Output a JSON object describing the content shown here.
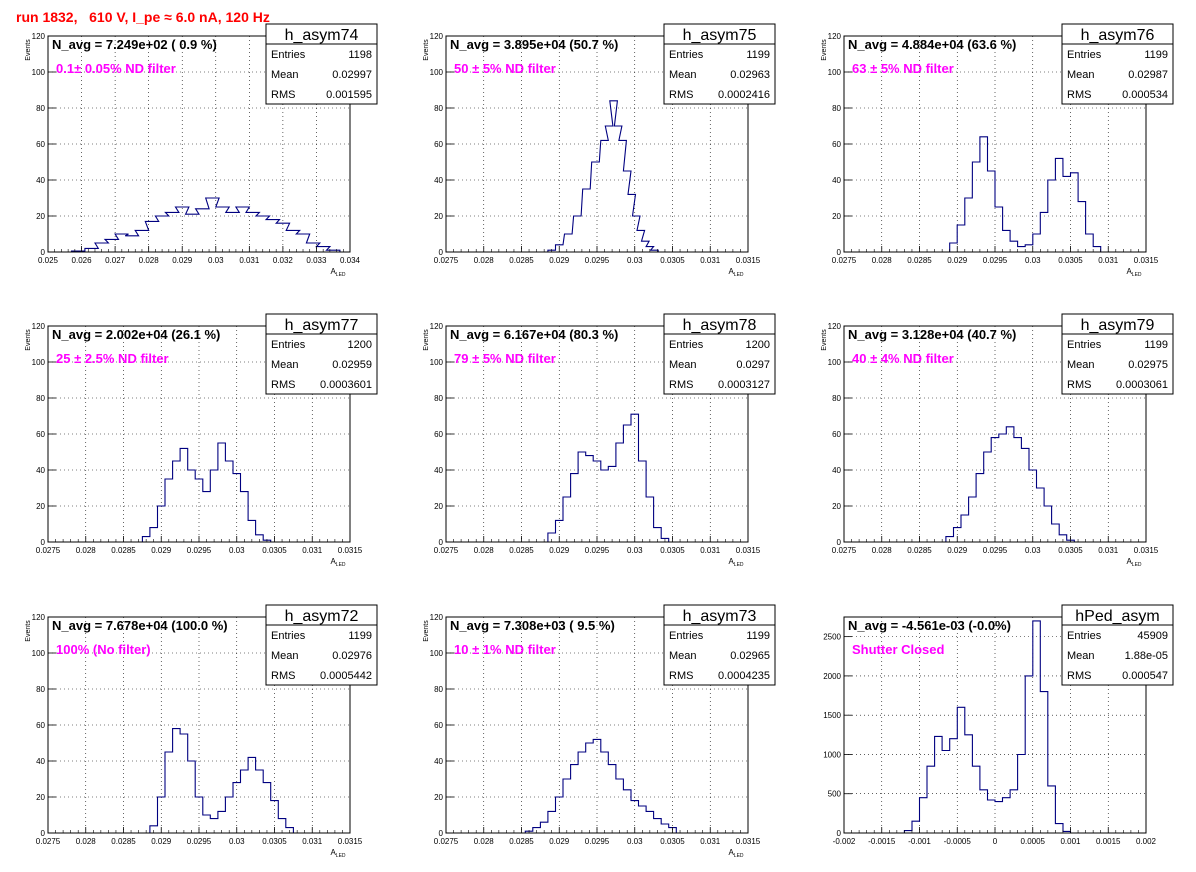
{
  "page": {
    "run_title": "run 1832,   610 V, I_pe ≈ 6.0 nA, 120 Hz"
  },
  "chart_data": [
    {
      "type": "bar",
      "name": "h_asym74",
      "nLabel": "N_avg = 7.249e+02 ( 0.9 %)",
      "filter": "0.1± 0.05% ND filter",
      "stats": {
        "entries": "1198",
        "mean": "0.02997",
        "rms": "0.001595"
      },
      "xlim": [
        0.025,
        0.034
      ],
      "xticks": [
        0.025,
        0.026,
        0.027,
        0.028,
        0.029,
        0.03,
        0.031,
        0.032,
        0.033,
        0.034
      ],
      "xticklabels": [
        "0.025",
        "0.026",
        "0.027",
        "0.028",
        "0.029",
        "0.03",
        "0.031",
        "0.032",
        "0.033",
        "0.034"
      ],
      "ylim": [
        0,
        120
      ],
      "yticks": [
        0,
        20,
        40,
        60,
        80,
        100,
        120
      ],
      "xlabel": "A_LED",
      "ylabel": "Events",
      "bins": [
        [
          0.0259,
          0.5
        ],
        [
          0.0263,
          2
        ],
        [
          0.0266,
          5
        ],
        [
          0.0269,
          7
        ],
        [
          0.0272,
          10
        ],
        [
          0.0275,
          9
        ],
        [
          0.0278,
          12
        ],
        [
          0.0281,
          17
        ],
        [
          0.0284,
          20
        ],
        [
          0.0287,
          22
        ],
        [
          0.029,
          25
        ],
        [
          0.0293,
          21
        ],
        [
          0.0296,
          24
        ],
        [
          0.0299,
          30
        ],
        [
          0.0302,
          25
        ],
        [
          0.0305,
          22
        ],
        [
          0.0308,
          25
        ],
        [
          0.0311,
          22
        ],
        [
          0.0314,
          20
        ],
        [
          0.0317,
          18
        ],
        [
          0.032,
          16
        ],
        [
          0.0323,
          12
        ],
        [
          0.0326,
          10
        ],
        [
          0.0329,
          5
        ],
        [
          0.0332,
          3
        ],
        [
          0.0335,
          1
        ]
      ]
    },
    {
      "type": "bar",
      "name": "h_asym75",
      "nLabel": "N_avg = 3.895e+04 (50.7 %)",
      "filter": "50 ± 5% ND filter",
      "stats": {
        "entries": "1199",
        "mean": "0.02963",
        "rms": "0.0002416"
      },
      "xlim": [
        0.0275,
        0.0315
      ],
      "xticks": [
        0.0275,
        0.028,
        0.0285,
        0.029,
        0.0295,
        0.03,
        0.0305,
        0.031,
        0.0315
      ],
      "xticklabels": [
        "0.0275",
        "0.028",
        "0.0285",
        "0.029",
        "0.0295",
        "0.03",
        "0.0305",
        "0.031",
        "0.0315"
      ],
      "ylim": [
        0,
        120
      ],
      "yticks": [
        0,
        20,
        40,
        60,
        80,
        100,
        120
      ],
      "xlabel": "A_LED",
      "ylabel": "Events",
      "bins": [
        [
          0.0289,
          1
        ],
        [
          0.029,
          4
        ],
        [
          0.02912,
          10
        ],
        [
          0.02924,
          20
        ],
        [
          0.02936,
          35
        ],
        [
          0.02948,
          50
        ],
        [
          0.0296,
          62
        ],
        [
          0.02966,
          70
        ],
        [
          0.02972,
          84
        ],
        [
          0.02978,
          70
        ],
        [
          0.02984,
          62
        ],
        [
          0.0299,
          45
        ],
        [
          0.02996,
          32
        ],
        [
          0.03002,
          20
        ],
        [
          0.03008,
          12
        ],
        [
          0.03014,
          6
        ],
        [
          0.0302,
          3
        ],
        [
          0.03026,
          1
        ]
      ]
    },
    {
      "type": "bar",
      "name": "h_asym76",
      "nLabel": "N_avg = 4.884e+04 (63.6 %)",
      "filter": "63 ± 5% ND filter",
      "stats": {
        "entries": "1199",
        "mean": "0.02987",
        "rms": "0.000534"
      },
      "xlim": [
        0.0275,
        0.0315
      ],
      "xticks": [
        0.0275,
        0.028,
        0.0285,
        0.029,
        0.0295,
        0.03,
        0.0305,
        0.031,
        0.0315
      ],
      "xticklabels": [
        "0.0275",
        "0.028",
        "0.0285",
        "0.029",
        "0.0295",
        "0.03",
        "0.0305",
        "0.031",
        "0.0315"
      ],
      "ylim": [
        0,
        120
      ],
      "yticks": [
        0,
        20,
        40,
        60,
        80,
        100,
        120
      ],
      "xlabel": "A_LED",
      "ylabel": "Events",
      "bins": [
        [
          0.02895,
          5
        ],
        [
          0.02905,
          15
        ],
        [
          0.02915,
          30
        ],
        [
          0.02925,
          50
        ],
        [
          0.02935,
          64
        ],
        [
          0.02945,
          45
        ],
        [
          0.02955,
          25
        ],
        [
          0.02965,
          12
        ],
        [
          0.02975,
          6
        ],
        [
          0.02985,
          3
        ],
        [
          0.02995,
          4
        ],
        [
          0.03005,
          10
        ],
        [
          0.03015,
          22
        ],
        [
          0.03025,
          40
        ],
        [
          0.03035,
          52
        ],
        [
          0.03045,
          42
        ],
        [
          0.03055,
          44
        ],
        [
          0.03065,
          28
        ],
        [
          0.03075,
          10
        ],
        [
          0.03085,
          3
        ]
      ]
    },
    {
      "type": "bar",
      "name": "h_asym77",
      "nLabel": "N_avg = 2.002e+04 (26.1 %)",
      "filter": "25 ± 2.5% ND filter",
      "stats": {
        "entries": "1200",
        "mean": "0.02959",
        "rms": "0.0003601"
      },
      "xlim": [
        0.0275,
        0.0315
      ],
      "xticks": [
        0.0275,
        0.028,
        0.0285,
        0.029,
        0.0295,
        0.03,
        0.0305,
        0.031,
        0.0315
      ],
      "xticklabels": [
        "0.0275",
        "0.028",
        "0.0285",
        "0.029",
        "0.0295",
        "0.03",
        "0.0305",
        "0.031",
        "0.0315"
      ],
      "ylim": [
        0,
        120
      ],
      "yticks": [
        0,
        20,
        40,
        60,
        80,
        100,
        120
      ],
      "xlabel": "A_LED",
      "ylabel": "Events",
      "bins": [
        [
          0.0288,
          3
        ],
        [
          0.0289,
          8
        ],
        [
          0.029,
          20
        ],
        [
          0.0291,
          35
        ],
        [
          0.0292,
          45
        ],
        [
          0.0293,
          52
        ],
        [
          0.0294,
          40
        ],
        [
          0.0295,
          35
        ],
        [
          0.0296,
          28
        ],
        [
          0.0297,
          40
        ],
        [
          0.0298,
          55
        ],
        [
          0.0299,
          45
        ],
        [
          0.03,
          38
        ],
        [
          0.0301,
          28
        ],
        [
          0.0302,
          12
        ],
        [
          0.0303,
          4
        ],
        [
          0.0304,
          1
        ]
      ]
    },
    {
      "type": "bar",
      "name": "h_asym78",
      "nLabel": "N_avg = 6.167e+04 (80.3 %)",
      "filter": "79 ± 5% ND filter",
      "stats": {
        "entries": "1200",
        "mean": "0.0297",
        "rms": "0.0003127"
      },
      "xlim": [
        0.0275,
        0.0315
      ],
      "xticks": [
        0.0275,
        0.028,
        0.0285,
        0.029,
        0.0295,
        0.03,
        0.0305,
        0.031,
        0.0315
      ],
      "xticklabels": [
        "0.0275",
        "0.028",
        "0.0285",
        "0.029",
        "0.0295",
        "0.03",
        "0.0305",
        "0.031",
        "0.0315"
      ],
      "ylim": [
        0,
        120
      ],
      "yticks": [
        0,
        20,
        40,
        60,
        80,
        100,
        120
      ],
      "xlabel": "A_LED",
      "ylabel": "Events",
      "bins": [
        [
          0.0289,
          5
        ],
        [
          0.029,
          12
        ],
        [
          0.0291,
          25
        ],
        [
          0.0292,
          38
        ],
        [
          0.0293,
          50
        ],
        [
          0.0294,
          48
        ],
        [
          0.0295,
          45
        ],
        [
          0.0296,
          40
        ],
        [
          0.0297,
          42
        ],
        [
          0.0298,
          55
        ],
        [
          0.0299,
          65
        ],
        [
          0.03,
          71
        ],
        [
          0.0301,
          45
        ],
        [
          0.0302,
          25
        ],
        [
          0.0303,
          8
        ],
        [
          0.0304,
          2
        ]
      ]
    },
    {
      "type": "bar",
      "name": "h_asym79",
      "nLabel": "N_avg = 3.128e+04 (40.7 %)",
      "filter": "40 ± 4% ND filter",
      "stats": {
        "entries": "1199",
        "mean": "0.02975",
        "rms": "0.0003061"
      },
      "xlim": [
        0.0275,
        0.0315
      ],
      "xticks": [
        0.0275,
        0.028,
        0.0285,
        0.029,
        0.0295,
        0.03,
        0.0305,
        0.031,
        0.0315
      ],
      "xticklabels": [
        "0.0275",
        "0.028",
        "0.0285",
        "0.029",
        "0.0295",
        "0.03",
        "0.0305",
        "0.031",
        "0.0315"
      ],
      "ylim": [
        0,
        120
      ],
      "yticks": [
        0,
        20,
        40,
        60,
        80,
        100,
        120
      ],
      "xlabel": "A_LED",
      "ylabel": "Events",
      "bins": [
        [
          0.0289,
          3
        ],
        [
          0.029,
          8
        ],
        [
          0.0291,
          15
        ],
        [
          0.0292,
          25
        ],
        [
          0.0293,
          38
        ],
        [
          0.0294,
          50
        ],
        [
          0.0295,
          58
        ],
        [
          0.0296,
          60
        ],
        [
          0.0297,
          64
        ],
        [
          0.0298,
          58
        ],
        [
          0.0299,
          52
        ],
        [
          0.03,
          40
        ],
        [
          0.0301,
          30
        ],
        [
          0.0302,
          20
        ],
        [
          0.0303,
          10
        ],
        [
          0.0304,
          4
        ],
        [
          0.0305,
          1
        ]
      ]
    },
    {
      "type": "bar",
      "name": "h_asym72",
      "nLabel": "N_avg = 7.678e+04 (100.0 %)",
      "filter": "100% (No filter)",
      "stats": {
        "entries": "1199",
        "mean": "0.02976",
        "rms": "0.0005442"
      },
      "xlim": [
        0.0275,
        0.0315
      ],
      "xticks": [
        0.0275,
        0.028,
        0.0285,
        0.029,
        0.0295,
        0.03,
        0.0305,
        0.031,
        0.0315
      ],
      "xticklabels": [
        "0.0275",
        "0.028",
        "0.0285",
        "0.029",
        "0.0295",
        "0.03",
        "0.0305",
        "0.031",
        "0.0315"
      ],
      "ylim": [
        0,
        120
      ],
      "yticks": [
        0,
        20,
        40,
        60,
        80,
        100,
        120
      ],
      "xlabel": "A_LED",
      "ylabel": "Events",
      "bins": [
        [
          0.0289,
          4
        ],
        [
          0.029,
          20
        ],
        [
          0.0291,
          45
        ],
        [
          0.0292,
          58
        ],
        [
          0.0293,
          55
        ],
        [
          0.0294,
          40
        ],
        [
          0.0295,
          20
        ],
        [
          0.0296,
          10
        ],
        [
          0.0297,
          8
        ],
        [
          0.0298,
          12
        ],
        [
          0.0299,
          20
        ],
        [
          0.03,
          28
        ],
        [
          0.0301,
          35
        ],
        [
          0.0302,
          42
        ],
        [
          0.0303,
          35
        ],
        [
          0.0304,
          28
        ],
        [
          0.0305,
          18
        ],
        [
          0.0306,
          8
        ],
        [
          0.0307,
          3
        ]
      ]
    },
    {
      "type": "bar",
      "name": "h_asym73",
      "nLabel": "N_avg = 7.308e+03 ( 9.5 %)",
      "filter": "10 ± 1% ND filter",
      "stats": {
        "entries": "1199",
        "mean": "0.02965",
        "rms": "0.0004235"
      },
      "xlim": [
        0.0275,
        0.0315
      ],
      "xticks": [
        0.0275,
        0.028,
        0.0285,
        0.029,
        0.0295,
        0.03,
        0.0305,
        0.031,
        0.0315
      ],
      "xticklabels": [
        "0.0275",
        "0.028",
        "0.0285",
        "0.029",
        "0.0295",
        "0.03",
        "0.0305",
        "0.031",
        "0.0315"
      ],
      "ylim": [
        0,
        120
      ],
      "yticks": [
        0,
        20,
        40,
        60,
        80,
        100,
        120
      ],
      "xlabel": "A_LED",
      "ylabel": "Events",
      "bins": [
        [
          0.0286,
          1
        ],
        [
          0.0287,
          3
        ],
        [
          0.0288,
          6
        ],
        [
          0.0289,
          12
        ],
        [
          0.029,
          20
        ],
        [
          0.0291,
          30
        ],
        [
          0.0292,
          38
        ],
        [
          0.0293,
          45
        ],
        [
          0.0294,
          50
        ],
        [
          0.0295,
          52
        ],
        [
          0.0296,
          45
        ],
        [
          0.0297,
          38
        ],
        [
          0.0298,
          30
        ],
        [
          0.0299,
          24
        ],
        [
          0.03,
          18
        ],
        [
          0.0301,
          15
        ],
        [
          0.0302,
          12
        ],
        [
          0.0303,
          8
        ],
        [
          0.0304,
          5
        ],
        [
          0.0305,
          3
        ]
      ]
    },
    {
      "type": "bar",
      "name": "hPed_asym",
      "nLabel": "N_avg = -4.561e-03 (-0.0%)",
      "filter": "Shutter Closed",
      "stats": {
        "entries": "45909",
        "mean": "1.88e-05",
        "rms": "0.000547"
      },
      "xlim": [
        -0.002,
        0.002
      ],
      "xticks": [
        -0.002,
        -0.0015,
        -0.001,
        -0.0005,
        0,
        0.0005,
        0.001,
        0.0015,
        0.002
      ],
      "xticklabels": [
        "-0.002",
        "-0.0015",
        "-0.001",
        "-0.0005",
        "0",
        "0.0005",
        "0.001",
        "0.0015",
        "0.002"
      ],
      "ylim": [
        0,
        2750
      ],
      "yticks": [
        0,
        500,
        1000,
        1500,
        2000,
        2500
      ],
      "xlabel": "",
      "ylabel": "",
      "bins": [
        [
          -0.00115,
          30
        ],
        [
          -0.00105,
          150
        ],
        [
          -0.00095,
          450
        ],
        [
          -0.00085,
          850
        ],
        [
          -0.00075,
          1230
        ],
        [
          -0.00065,
          1050
        ],
        [
          -0.00055,
          1200
        ],
        [
          -0.00045,
          1600
        ],
        [
          -0.00035,
          1250
        ],
        [
          -0.00025,
          850
        ],
        [
          -0.00015,
          550
        ],
        [
          -5e-05,
          420
        ],
        [
          5e-05,
          400
        ],
        [
          0.00015,
          450
        ],
        [
          0.00025,
          550
        ],
        [
          0.00035,
          1000
        ],
        [
          0.00045,
          2000
        ],
        [
          0.00055,
          2700
        ],
        [
          0.00065,
          1800
        ],
        [
          0.00075,
          600
        ],
        [
          0.00085,
          120
        ],
        [
          0.00095,
          20
        ]
      ]
    }
  ]
}
